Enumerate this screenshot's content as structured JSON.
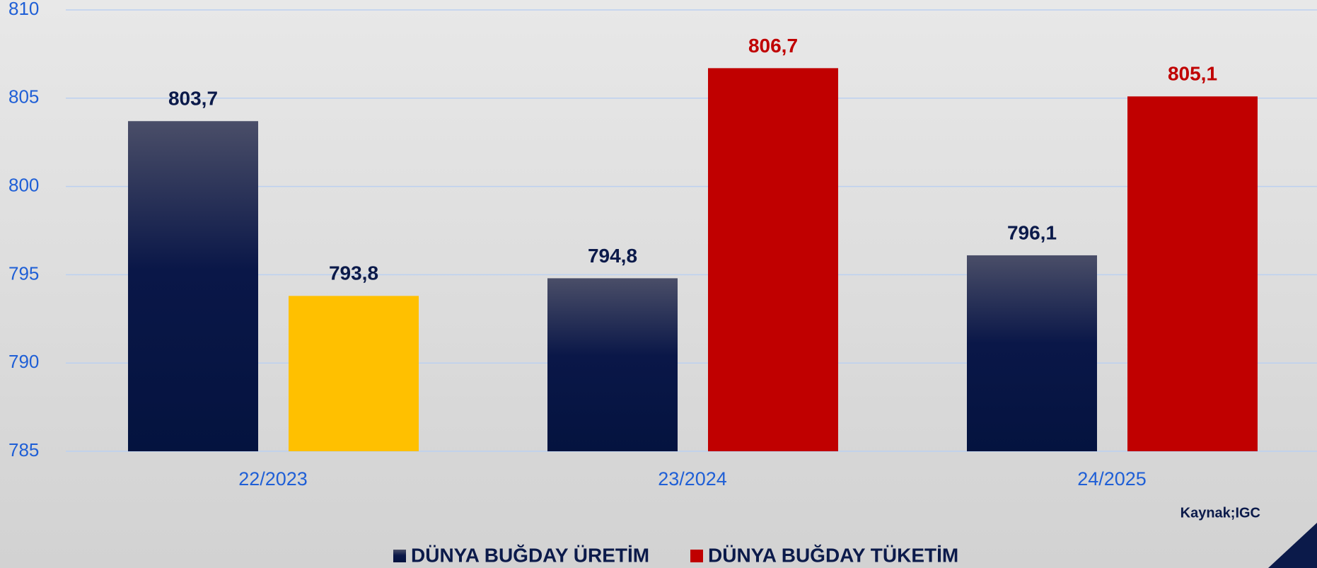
{
  "chart_data": {
    "type": "bar",
    "categories": [
      "22/2023",
      "23/2024",
      "24/2025"
    ],
    "series": [
      {
        "name": "DÜNYA BUĞDAY ÜRETİM",
        "color": "#04133f",
        "values": [
          803.7,
          794.8,
          796.1
        ],
        "value_labels": [
          "803,7",
          "794,8",
          "796,1"
        ],
        "label_colors": [
          "#0b1a4a",
          "#0b1a4a",
          "#0b1a4a"
        ]
      },
      {
        "name": "DÜNYA BUĞDAY TÜKETİM",
        "color": "#c00000",
        "colors": [
          "#ffc000",
          "#c00000",
          "#c00000"
        ],
        "values": [
          793.8,
          806.7,
          805.1
        ],
        "value_labels": [
          "793,8",
          "806,7",
          "805,1"
        ],
        "label_colors": [
          "#0b1a4a",
          "#c00000",
          "#c00000"
        ]
      }
    ],
    "ylim": [
      785,
      810
    ],
    "yticks": [
      785,
      790,
      795,
      800,
      805,
      810
    ],
    "grid": true,
    "annotation": "Kaynak;IGC",
    "legend": "bottom"
  }
}
